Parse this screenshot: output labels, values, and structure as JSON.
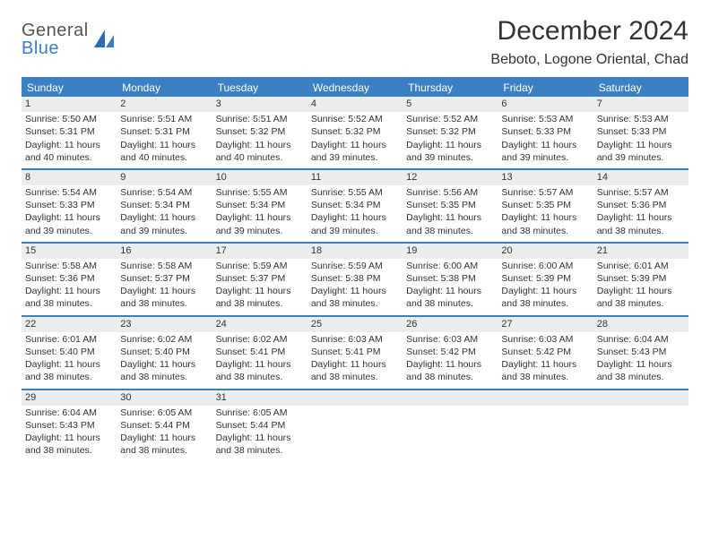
{
  "brand": {
    "line1": "General",
    "line2": "Blue"
  },
  "title": "December 2024",
  "subtitle": "Beboto, Logone Oriental, Chad",
  "colors": {
    "accent": "#3a80c2",
    "header_text": "#ffffff",
    "daynum_bg": "#eceeee",
    "text": "#333333",
    "background": "#ffffff"
  },
  "typography": {
    "title_fontsize": 30,
    "subtitle_fontsize": 16,
    "dow_fontsize": 12,
    "cell_fontsize": 10.5
  },
  "days_of_week": [
    "Sunday",
    "Monday",
    "Tuesday",
    "Wednesday",
    "Thursday",
    "Friday",
    "Saturday"
  ],
  "weeks": [
    [
      {
        "n": "1",
        "sunrise": "Sunrise: 5:50 AM",
        "sunset": "Sunset: 5:31 PM",
        "dl1": "Daylight: 11 hours",
        "dl2": "and 40 minutes."
      },
      {
        "n": "2",
        "sunrise": "Sunrise: 5:51 AM",
        "sunset": "Sunset: 5:31 PM",
        "dl1": "Daylight: 11 hours",
        "dl2": "and 40 minutes."
      },
      {
        "n": "3",
        "sunrise": "Sunrise: 5:51 AM",
        "sunset": "Sunset: 5:32 PM",
        "dl1": "Daylight: 11 hours",
        "dl2": "and 40 minutes."
      },
      {
        "n": "4",
        "sunrise": "Sunrise: 5:52 AM",
        "sunset": "Sunset: 5:32 PM",
        "dl1": "Daylight: 11 hours",
        "dl2": "and 39 minutes."
      },
      {
        "n": "5",
        "sunrise": "Sunrise: 5:52 AM",
        "sunset": "Sunset: 5:32 PM",
        "dl1": "Daylight: 11 hours",
        "dl2": "and 39 minutes."
      },
      {
        "n": "6",
        "sunrise": "Sunrise: 5:53 AM",
        "sunset": "Sunset: 5:33 PM",
        "dl1": "Daylight: 11 hours",
        "dl2": "and 39 minutes."
      },
      {
        "n": "7",
        "sunrise": "Sunrise: 5:53 AM",
        "sunset": "Sunset: 5:33 PM",
        "dl1": "Daylight: 11 hours",
        "dl2": "and 39 minutes."
      }
    ],
    [
      {
        "n": "8",
        "sunrise": "Sunrise: 5:54 AM",
        "sunset": "Sunset: 5:33 PM",
        "dl1": "Daylight: 11 hours",
        "dl2": "and 39 minutes."
      },
      {
        "n": "9",
        "sunrise": "Sunrise: 5:54 AM",
        "sunset": "Sunset: 5:34 PM",
        "dl1": "Daylight: 11 hours",
        "dl2": "and 39 minutes."
      },
      {
        "n": "10",
        "sunrise": "Sunrise: 5:55 AM",
        "sunset": "Sunset: 5:34 PM",
        "dl1": "Daylight: 11 hours",
        "dl2": "and 39 minutes."
      },
      {
        "n": "11",
        "sunrise": "Sunrise: 5:55 AM",
        "sunset": "Sunset: 5:34 PM",
        "dl1": "Daylight: 11 hours",
        "dl2": "and 39 minutes."
      },
      {
        "n": "12",
        "sunrise": "Sunrise: 5:56 AM",
        "sunset": "Sunset: 5:35 PM",
        "dl1": "Daylight: 11 hours",
        "dl2": "and 38 minutes."
      },
      {
        "n": "13",
        "sunrise": "Sunrise: 5:57 AM",
        "sunset": "Sunset: 5:35 PM",
        "dl1": "Daylight: 11 hours",
        "dl2": "and 38 minutes."
      },
      {
        "n": "14",
        "sunrise": "Sunrise: 5:57 AM",
        "sunset": "Sunset: 5:36 PM",
        "dl1": "Daylight: 11 hours",
        "dl2": "and 38 minutes."
      }
    ],
    [
      {
        "n": "15",
        "sunrise": "Sunrise: 5:58 AM",
        "sunset": "Sunset: 5:36 PM",
        "dl1": "Daylight: 11 hours",
        "dl2": "and 38 minutes."
      },
      {
        "n": "16",
        "sunrise": "Sunrise: 5:58 AM",
        "sunset": "Sunset: 5:37 PM",
        "dl1": "Daylight: 11 hours",
        "dl2": "and 38 minutes."
      },
      {
        "n": "17",
        "sunrise": "Sunrise: 5:59 AM",
        "sunset": "Sunset: 5:37 PM",
        "dl1": "Daylight: 11 hours",
        "dl2": "and 38 minutes."
      },
      {
        "n": "18",
        "sunrise": "Sunrise: 5:59 AM",
        "sunset": "Sunset: 5:38 PM",
        "dl1": "Daylight: 11 hours",
        "dl2": "and 38 minutes."
      },
      {
        "n": "19",
        "sunrise": "Sunrise: 6:00 AM",
        "sunset": "Sunset: 5:38 PM",
        "dl1": "Daylight: 11 hours",
        "dl2": "and 38 minutes."
      },
      {
        "n": "20",
        "sunrise": "Sunrise: 6:00 AM",
        "sunset": "Sunset: 5:39 PM",
        "dl1": "Daylight: 11 hours",
        "dl2": "and 38 minutes."
      },
      {
        "n": "21",
        "sunrise": "Sunrise: 6:01 AM",
        "sunset": "Sunset: 5:39 PM",
        "dl1": "Daylight: 11 hours",
        "dl2": "and 38 minutes."
      }
    ],
    [
      {
        "n": "22",
        "sunrise": "Sunrise: 6:01 AM",
        "sunset": "Sunset: 5:40 PM",
        "dl1": "Daylight: 11 hours",
        "dl2": "and 38 minutes."
      },
      {
        "n": "23",
        "sunrise": "Sunrise: 6:02 AM",
        "sunset": "Sunset: 5:40 PM",
        "dl1": "Daylight: 11 hours",
        "dl2": "and 38 minutes."
      },
      {
        "n": "24",
        "sunrise": "Sunrise: 6:02 AM",
        "sunset": "Sunset: 5:41 PM",
        "dl1": "Daylight: 11 hours",
        "dl2": "and 38 minutes."
      },
      {
        "n": "25",
        "sunrise": "Sunrise: 6:03 AM",
        "sunset": "Sunset: 5:41 PM",
        "dl1": "Daylight: 11 hours",
        "dl2": "and 38 minutes."
      },
      {
        "n": "26",
        "sunrise": "Sunrise: 6:03 AM",
        "sunset": "Sunset: 5:42 PM",
        "dl1": "Daylight: 11 hours",
        "dl2": "and 38 minutes."
      },
      {
        "n": "27",
        "sunrise": "Sunrise: 6:03 AM",
        "sunset": "Sunset: 5:42 PM",
        "dl1": "Daylight: 11 hours",
        "dl2": "and 38 minutes."
      },
      {
        "n": "28",
        "sunrise": "Sunrise: 6:04 AM",
        "sunset": "Sunset: 5:43 PM",
        "dl1": "Daylight: 11 hours",
        "dl2": "and 38 minutes."
      }
    ],
    [
      {
        "n": "29",
        "sunrise": "Sunrise: 6:04 AM",
        "sunset": "Sunset: 5:43 PM",
        "dl1": "Daylight: 11 hours",
        "dl2": "and 38 minutes."
      },
      {
        "n": "30",
        "sunrise": "Sunrise: 6:05 AM",
        "sunset": "Sunset: 5:44 PM",
        "dl1": "Daylight: 11 hours",
        "dl2": "and 38 minutes."
      },
      {
        "n": "31",
        "sunrise": "Sunrise: 6:05 AM",
        "sunset": "Sunset: 5:44 PM",
        "dl1": "Daylight: 11 hours",
        "dl2": "and 38 minutes."
      },
      {
        "n": "",
        "sunrise": "",
        "sunset": "",
        "dl1": "",
        "dl2": "",
        "empty": true
      },
      {
        "n": "",
        "sunrise": "",
        "sunset": "",
        "dl1": "",
        "dl2": "",
        "empty": true
      },
      {
        "n": "",
        "sunrise": "",
        "sunset": "",
        "dl1": "",
        "dl2": "",
        "empty": true
      },
      {
        "n": "",
        "sunrise": "",
        "sunset": "",
        "dl1": "",
        "dl2": "",
        "empty": true
      }
    ]
  ]
}
